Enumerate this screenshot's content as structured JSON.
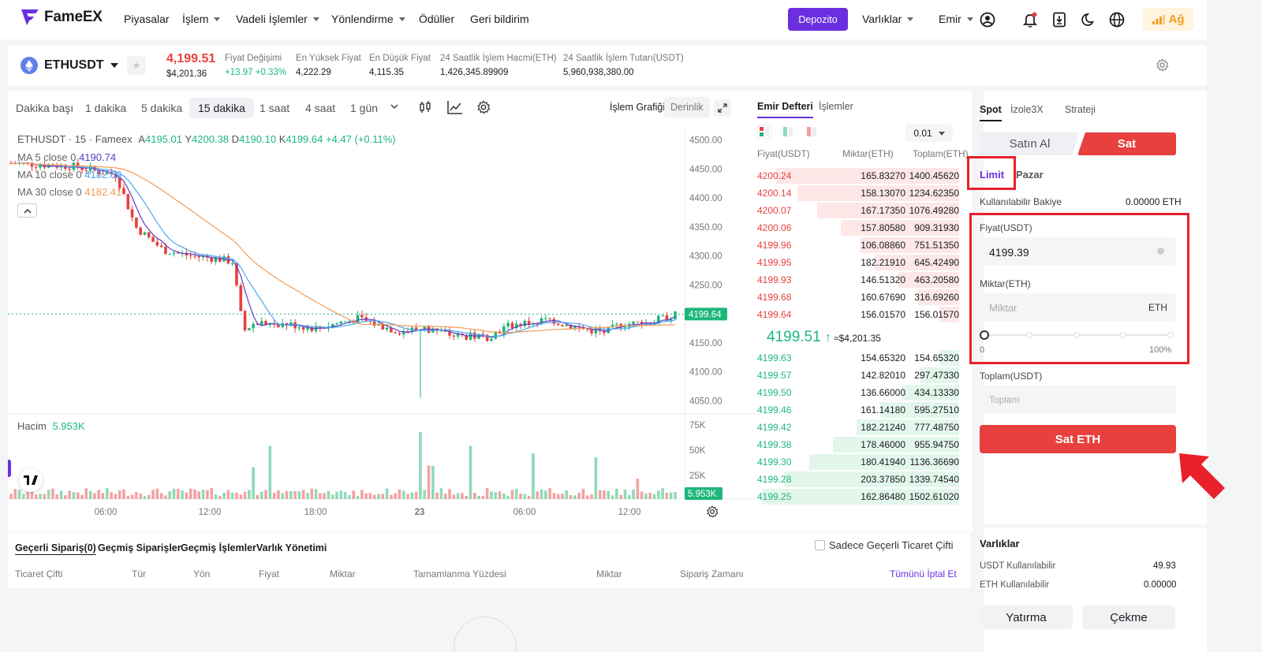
{
  "nav": {
    "logo": "FameEX",
    "items": [
      "Piyasalar",
      "İşlem",
      "Vadeli İşlemler",
      "Yönlendirme",
      "Ödüller",
      "Geri bildirim"
    ],
    "deposit": "Depozito",
    "assets": "Varlıklar",
    "order": "Emir",
    "network": "Ağ"
  },
  "ticker": {
    "pair": "ETHUSDT",
    "price": "4,199.51",
    "price_usd": "$4,201.36",
    "stats": [
      {
        "label": "Fiyat Değişimi",
        "value": "+13.97 +0.33%"
      },
      {
        "label": "En Yüksek Fiyat",
        "value": "4,222.29"
      },
      {
        "label": "En Düşük Fiyat",
        "value": "4,115.35"
      },
      {
        "label": "24 Saatlik İşlem Hacmi(ETH)",
        "value": "1,426,345.89909"
      },
      {
        "label": "24 Saatlik İşlem Tutarı(USDT)",
        "value": "5,960,938,380.00"
      }
    ]
  },
  "chart": {
    "timeframes": [
      "Dakika başı",
      "1 dakika",
      "5 dakika",
      "15 dakika",
      "1 saat",
      "4 saat",
      "1 gün"
    ],
    "active_timeframe": "15 dakika",
    "mode_chart": "İşlem Grafiği",
    "mode_depth": "Derinlik",
    "legend_title": "ETHUSDT · 15 · Fameex",
    "ohlc": {
      "A": "4195.01",
      "Y": "4200.38",
      "D": "4190.10",
      "K": "4199.64",
      "chg": "+4.47 (+0.11%)"
    },
    "ma": [
      {
        "label": "MA 5 close 0",
        "value": "4190.74",
        "color": "#5b3fc7"
      },
      {
        "label": "MA 10 close 0",
        "value": "4182.69",
        "color": "#4aa8f0"
      },
      {
        "label": "MA 30 close 0",
        "value": "4182.41",
        "color": "#f39c55"
      }
    ],
    "price_ticks": [
      "4500.00",
      "4450.00",
      "4400.00",
      "4350.00",
      "4300.00",
      "4250.00",
      "4200.00",
      "4150.00",
      "4100.00",
      "4050.00"
    ],
    "current_price_tag": "4199.64",
    "volume_label": "Hacim",
    "volume_value": "5.953K",
    "volume_ticks": [
      "75K",
      "50K",
      "25K"
    ],
    "volume_tag": "5.953K",
    "time_ticks": [
      "06:00",
      "12:00",
      "18:00",
      "23",
      "06:00",
      "12:00"
    ]
  },
  "chart_data": {
    "type": "line",
    "title": "ETHUSDT · 15 · Fameex",
    "xlabel": "",
    "ylabel": "",
    "ylim": [
      4030,
      4520
    ],
    "x": [
      "06:00",
      "12:00",
      "18:00",
      "23",
      "06:00",
      "12:00"
    ],
    "series": [
      {
        "name": "MA 5 close 0",
        "values": [
          4460,
          4300,
          4185,
          4180,
          4160,
          4190
        ]
      },
      {
        "name": "MA 10 close 0",
        "values": [
          4465,
          4305,
          4190,
          4182,
          4170,
          4183
        ]
      },
      {
        "name": "MA 30 close 0",
        "values": [
          4470,
          4380,
          4200,
          4178,
          4180,
          4182
        ]
      }
    ]
  },
  "orderbook": {
    "tab_book": "Emir Defteri",
    "tab_trades": "İşlemler",
    "precision": "0.01",
    "headers": [
      "Fiyat(USDT)",
      "Miktar(ETH)",
      "Toplam(ETH)"
    ],
    "asks": [
      [
        "4200.24",
        "165.83270",
        "1400.45620"
      ],
      [
        "4200.14",
        "158.13070",
        "1234.62350"
      ],
      [
        "4200.07",
        "167.17350",
        "1076.49280"
      ],
      [
        "4200.06",
        "157.80580",
        "909.31930"
      ],
      [
        "4199.96",
        "106.08860",
        "751.51350"
      ],
      [
        "4199.95",
        "182.21910",
        "645.42490"
      ],
      [
        "4199.93",
        "146.51320",
        "463.20580"
      ],
      [
        "4199.68",
        "160.67690",
        "316.69260"
      ],
      [
        "4199.64",
        "156.01570",
        "156.01570"
      ]
    ],
    "mid": "4199.51",
    "mid_usd": "≈$4,201.35",
    "bids": [
      [
        "4199.63",
        "154.65320",
        "154.65320"
      ],
      [
        "4199.57",
        "142.82010",
        "297.47330"
      ],
      [
        "4199.50",
        "136.66000",
        "434.13330"
      ],
      [
        "4199.46",
        "161.14180",
        "595.27510"
      ],
      [
        "4199.42",
        "182.21240",
        "777.48750"
      ],
      [
        "4199.38",
        "178.46000",
        "955.94750"
      ],
      [
        "4199.30",
        "180.41940",
        "1136.36690"
      ],
      [
        "4199.28",
        "203.37850",
        "1339.74540"
      ],
      [
        "4199.25",
        "162.86480",
        "1502.61020"
      ]
    ],
    "ask_depth": [
      0.93,
      0.82,
      0.72,
      0.6,
      0.5,
      0.43,
      0.31,
      0.21,
      0.1
    ],
    "bid_depth": [
      0.1,
      0.2,
      0.29,
      0.4,
      0.52,
      0.64,
      0.76,
      0.89,
      1.0
    ]
  },
  "trade": {
    "tabs": [
      "Spot",
      "İzole3X",
      "Strateji"
    ],
    "buy": "Satın Al",
    "sell": "Sat",
    "limit": "Limit",
    "market": "Pazar",
    "available_label": "Kullanılabilir Bakiye",
    "available_value": "0.00000 ETH",
    "price_label": "Fiyat(USDT)",
    "price_value": "4199.39",
    "amount_label": "Miktar(ETH)",
    "amount_placeholder": "Miktar",
    "amount_unit": "ETH",
    "slider_min": "0",
    "slider_max": "100%",
    "slider_level": 0,
    "total_label": "Toplam(USDT)",
    "total_placeholder": "Toplam",
    "submit": "Sat ETH"
  },
  "orders": {
    "tabs": [
      "Geçerli Sipariş(0)",
      "Geçmiş Siparişler",
      "Geçmiş İşlemler",
      "Varlık Yönetimi"
    ],
    "only_current": "Sadece Geçerli Ticaret Çifti",
    "columns": [
      "Ticaret Çifti",
      "Tür",
      "Yön",
      "Fiyat",
      "Miktar",
      "Tamamlanma Yüzdesi",
      "Miktar",
      "Sipariş Zamanı"
    ],
    "cancel_all": "Tümünü İptal Et"
  },
  "assets": {
    "title": "Varlıklar",
    "rows": [
      {
        "label": "USDT Kullanılabilir",
        "value": "49.93"
      },
      {
        "label": "ETH Kullanılabilir",
        "value": "0.00000"
      }
    ],
    "deposit": "Yatırma",
    "withdraw": "Çekme"
  },
  "colors": {
    "up": "#1db77c",
    "down": "#e8403e",
    "brand": "#6b2fe0",
    "annotation": "#e8202a"
  }
}
